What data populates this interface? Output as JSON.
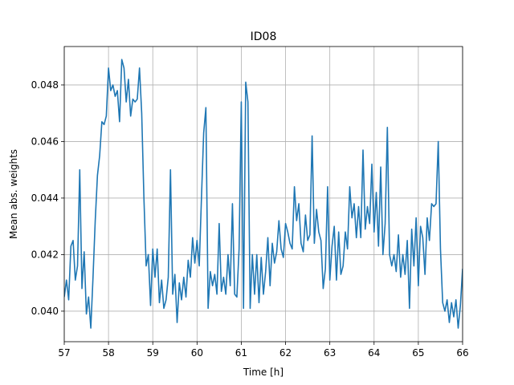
{
  "chart_data": {
    "type": "line",
    "title": "ID08",
    "xlabel": "Time [h]",
    "ylabel": "Mean abs. weights",
    "color": "#1f77b4",
    "grid": true,
    "xlim": [
      57,
      66
    ],
    "ylim": [
      0.03892,
      0.04936
    ],
    "xticks": [
      57,
      58,
      59,
      60,
      61,
      62,
      63,
      64,
      65,
      66
    ],
    "yticks": [
      {
        "value": 0.04,
        "label": "0.040"
      },
      0.042,
      0.044,
      0.046,
      0.048
    ],
    "x": [
      57.0,
      57.05,
      57.1,
      57.15,
      57.2,
      57.25,
      57.3,
      57.35,
      57.4,
      57.45,
      57.5,
      57.55,
      57.6,
      57.65,
      57.7,
      57.75,
      57.8,
      57.85,
      57.9,
      57.95,
      58.0,
      58.05,
      58.1,
      58.15,
      58.2,
      58.25,
      58.3,
      58.35,
      58.4,
      58.45,
      58.5,
      58.55,
      58.6,
      58.65,
      58.7,
      58.75,
      58.8,
      58.85,
      58.9,
      58.95,
      59.0,
      59.05,
      59.1,
      59.15,
      59.2,
      59.25,
      59.3,
      59.35,
      59.4,
      59.45,
      59.5,
      59.55,
      59.6,
      59.65,
      59.7,
      59.75,
      59.8,
      59.85,
      59.9,
      59.95,
      60.0,
      60.05,
      60.1,
      60.15,
      60.2,
      60.25,
      60.3,
      60.35,
      60.4,
      60.45,
      60.5,
      60.55,
      60.6,
      60.65,
      60.7,
      60.75,
      60.8,
      60.85,
      60.9,
      60.95,
      61.0,
      61.05,
      61.1,
      61.15,
      61.2,
      61.25,
      61.3,
      61.35,
      61.4,
      61.45,
      61.5,
      61.55,
      61.6,
      61.65,
      61.7,
      61.75,
      61.8,
      61.85,
      61.9,
      61.95,
      62.0,
      62.05,
      62.1,
      62.15,
      62.2,
      62.25,
      62.3,
      62.35,
      62.4,
      62.45,
      62.5,
      62.55,
      62.6,
      62.65,
      62.7,
      62.75,
      62.8,
      62.85,
      62.9,
      62.95,
      63.0,
      63.05,
      63.1,
      63.15,
      63.2,
      63.25,
      63.3,
      63.35,
      63.4,
      63.45,
      63.5,
      63.55,
      63.6,
      63.65,
      63.7,
      63.75,
      63.8,
      63.85,
      63.9,
      63.95,
      64.0,
      64.05,
      64.1,
      64.15,
      64.2,
      64.25,
      64.3,
      64.35,
      64.4,
      64.45,
      64.5,
      64.55,
      64.6,
      64.65,
      64.7,
      64.75,
      64.8,
      64.85,
      64.9,
      64.95,
      65.0,
      65.05,
      65.1,
      65.15,
      65.2,
      65.25,
      65.3,
      65.35,
      65.4,
      65.45,
      65.5,
      65.55,
      65.6,
      65.65,
      65.7,
      65.75,
      65.8,
      65.85,
      65.9,
      65.95,
      66.0
    ],
    "values": [
      0.0405,
      0.0411,
      0.0404,
      0.0423,
      0.0425,
      0.0411,
      0.0416,
      0.045,
      0.0408,
      0.0421,
      0.0399,
      0.0405,
      0.0394,
      0.0412,
      0.0432,
      0.0448,
      0.0455,
      0.0467,
      0.0466,
      0.0469,
      0.0486,
      0.0478,
      0.048,
      0.0476,
      0.0478,
      0.0467,
      0.0489,
      0.0486,
      0.0474,
      0.0482,
      0.0469,
      0.0475,
      0.0474,
      0.0475,
      0.0486,
      0.047,
      0.044,
      0.0416,
      0.042,
      0.0402,
      0.0422,
      0.0412,
      0.0422,
      0.0403,
      0.0411,
      0.0401,
      0.0404,
      0.0412,
      0.045,
      0.0406,
      0.0413,
      0.0396,
      0.041,
      0.0404,
      0.0412,
      0.0405,
      0.0418,
      0.0412,
      0.0426,
      0.0417,
      0.0425,
      0.0416,
      0.044,
      0.0463,
      0.0472,
      0.0401,
      0.0414,
      0.0409,
      0.0413,
      0.0406,
      0.0431,
      0.0407,
      0.0412,
      0.0406,
      0.042,
      0.0409,
      0.0438,
      0.0406,
      0.0405,
      0.0422,
      0.0474,
      0.0401,
      0.0481,
      0.0474,
      0.0401,
      0.042,
      0.0406,
      0.042,
      0.0403,
      0.0419,
      0.0406,
      0.0414,
      0.0426,
      0.0409,
      0.0424,
      0.0417,
      0.0421,
      0.0432,
      0.0422,
      0.0419,
      0.0431,
      0.0428,
      0.0424,
      0.0422,
      0.0444,
      0.0432,
      0.0438,
      0.0424,
      0.0421,
      0.0434,
      0.0425,
      0.0427,
      0.0462,
      0.0424,
      0.0436,
      0.0428,
      0.0425,
      0.0408,
      0.0415,
      0.0444,
      0.0411,
      0.0423,
      0.043,
      0.0411,
      0.0428,
      0.0413,
      0.0416,
      0.0428,
      0.0422,
      0.0444,
      0.0433,
      0.0438,
      0.0426,
      0.0437,
      0.0426,
      0.0457,
      0.0429,
      0.0437,
      0.0431,
      0.0452,
      0.0428,
      0.0442,
      0.0423,
      0.0451,
      0.042,
      0.0431,
      0.0465,
      0.042,
      0.0416,
      0.042,
      0.0414,
      0.0427,
      0.0412,
      0.042,
      0.0413,
      0.0425,
      0.0401,
      0.0429,
      0.0416,
      0.0433,
      0.0409,
      0.043,
      0.0426,
      0.0413,
      0.0433,
      0.0425,
      0.0438,
      0.0437,
      0.0438,
      0.046,
      0.0422,
      0.0403,
      0.04,
      0.0404,
      0.0396,
      0.0403,
      0.0398,
      0.0404,
      0.0394,
      0.0402,
      0.0415
    ]
  }
}
